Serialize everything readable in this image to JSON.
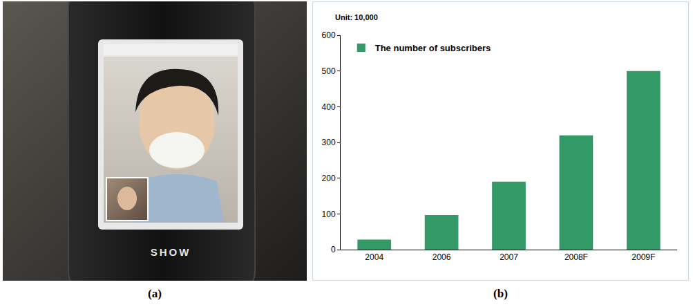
{
  "photo": {
    "panel_label": "(a)",
    "phone_brand": "SHOW"
  },
  "chart_data": {
    "type": "bar",
    "panel_label": "(b)",
    "subtitle": "Unit: 10,000",
    "categories": [
      "2004",
      "2006",
      "2007",
      "2008F",
      "2009F"
    ],
    "series": [
      {
        "name": "The number of subscribers",
        "color": "#339966",
        "values": [
          28,
          97,
          190,
          320,
          500
        ]
      }
    ],
    "ylim": [
      0,
      600
    ],
    "yticks": [
      0,
      100,
      200,
      300,
      400,
      500,
      600
    ],
    "grid": false,
    "legend": "top-left"
  }
}
